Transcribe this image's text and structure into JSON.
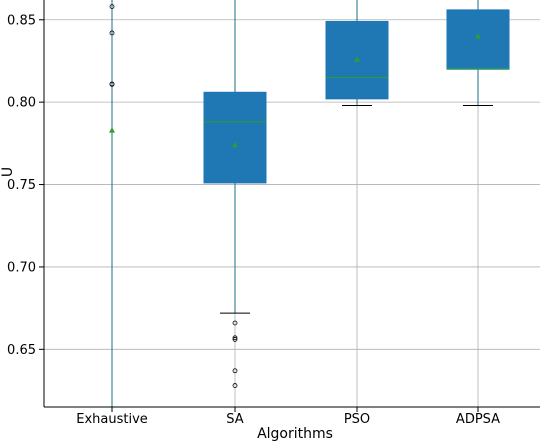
{
  "chart_data": {
    "type": "boxplot",
    "title": "",
    "xlabel": "Algorithms",
    "ylabel": "U",
    "ylim": [
      0.615,
      0.862
    ],
    "yticks": [
      0.65,
      0.7,
      0.75,
      0.8,
      0.85
    ],
    "ytick_labels": [
      "0.65",
      "0.70",
      "0.75",
      "0.80",
      "0.85"
    ],
    "grid": true,
    "categories": [
      "Exhaustive",
      "SA",
      "PSO",
      "ADPSA"
    ],
    "boxes": [
      {
        "name": "Exhaustive",
        "q1": null,
        "median": null,
        "q3": null,
        "whisker_low": 0.615,
        "whisker_high": 0.862,
        "mean": 0.783,
        "outliers": [
          0.858,
          0.842,
          0.811,
          0.8108
        ]
      },
      {
        "name": "SA",
        "q1": 0.751,
        "median": 0.788,
        "q3": 0.806,
        "whisker_low": 0.672,
        "whisker_high": 0.862,
        "mean": 0.774,
        "outliers": [
          0.666,
          0.657,
          0.656,
          0.637,
          0.628
        ]
      },
      {
        "name": "PSO",
        "q1": 0.802,
        "median": 0.815,
        "q3": 0.849,
        "whisker_low": 0.798,
        "whisker_high": 0.862,
        "mean": 0.826,
        "outliers": []
      },
      {
        "name": "ADPSA",
        "q1": 0.82,
        "median": 0.8205,
        "q3": 0.856,
        "whisker_low": 0.798,
        "whisker_high": 0.862,
        "mean": 0.84,
        "outliers": []
      }
    ],
    "colors": {
      "box_fill": "#1f77b4",
      "median": "#2ca02c",
      "mean_marker": "#2ca02c",
      "whisker": "#1f6f7f",
      "cap": "#000000",
      "grid": "#b0b0b0",
      "axis": "#000000"
    }
  }
}
